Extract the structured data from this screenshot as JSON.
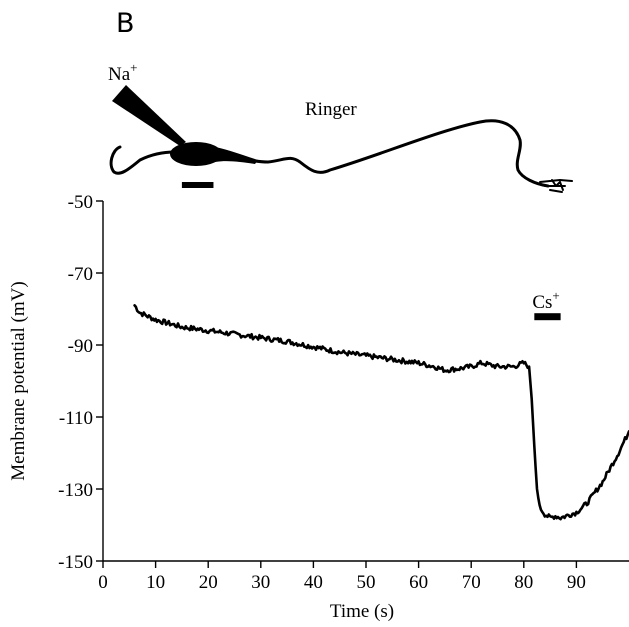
{
  "panel_label": "B",
  "diagram": {
    "pipette_label": "Na",
    "pipette_label_sup": "+",
    "bath_label": "Ringer"
  },
  "chart_data": {
    "type": "line",
    "title": "",
    "xlabel": "Time (s)",
    "ylabel": "Membrane potential (mV)",
    "xlim": [
      0,
      100
    ],
    "ylim": [
      -150,
      -50
    ],
    "x_ticks": [
      0,
      10,
      20,
      30,
      40,
      50,
      60,
      70,
      80,
      90
    ],
    "y_ticks": [
      -50,
      -70,
      -90,
      -110,
      -130,
      -150
    ],
    "x": [
      6,
      7,
      10,
      15,
      20,
      25,
      30,
      35,
      40,
      45,
      50,
      55,
      60,
      63,
      65,
      68,
      70,
      72,
      75,
      78,
      80,
      81,
      81.5,
      82,
      82.5,
      83,
      84,
      85,
      86,
      87,
      88,
      90,
      92,
      95,
      98,
      100
    ],
    "y": [
      -79,
      -81,
      -83,
      -85,
      -86,
      -87,
      -88,
      -89,
      -90.5,
      -92,
      -93,
      -94,
      -95,
      -96,
      -97,
      -96.5,
      -96,
      -95,
      -96,
      -96,
      -95,
      -96,
      -105,
      -118,
      -130,
      -135,
      -137,
      -138,
      -137.5,
      -138,
      -137.5,
      -136.5,
      -134,
      -128,
      -120,
      -114
    ],
    "annotations": [
      {
        "text": "Cs",
        "sup": "+",
        "bar_start": 82,
        "bar_end": 87,
        "bar_y": -82
      }
    ],
    "stimulus_bar": {
      "start": 15,
      "end": 21
    },
    "grid": false,
    "legend": "none"
  }
}
